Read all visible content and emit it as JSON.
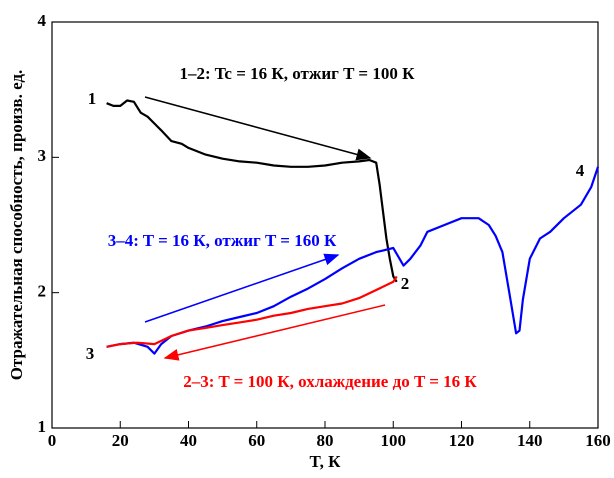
{
  "chart_data": {
    "type": "line",
    "xlabel": "T, К",
    "ylabel": "Отражательная способность, произв. ед.",
    "xlim": [
      0,
      160
    ],
    "xticks": [
      0,
      20,
      40,
      60,
      80,
      100,
      120,
      140,
      160
    ],
    "ylim": [
      1,
      4
    ],
    "yticks": [
      1,
      2,
      3,
      4
    ],
    "grid": false,
    "series": [
      {
        "name": "1–2: Tc = 16 К, отжиг T = 100 К",
        "color": "#000000",
        "x": [
          16,
          18,
          20,
          22,
          24,
          26,
          28,
          30,
          32,
          35,
          38,
          40,
          45,
          50,
          55,
          60,
          65,
          70,
          75,
          80,
          85,
          90,
          93,
          95,
          96,
          97,
          98,
          99,
          100,
          101
        ],
        "values": [
          3.4,
          3.38,
          3.38,
          3.42,
          3.41,
          3.33,
          3.3,
          3.25,
          3.2,
          3.12,
          3.1,
          3.07,
          3.02,
          2.99,
          2.97,
          2.96,
          2.94,
          2.93,
          2.93,
          2.94,
          2.96,
          2.97,
          2.98,
          2.96,
          2.8,
          2.6,
          2.4,
          2.25,
          2.12,
          2.08
        ]
      },
      {
        "name": "3–4: T = 16 К, отжиг T = 160 К",
        "color": "#0000ff",
        "x": [
          16,
          20,
          24,
          28,
          30,
          32,
          35,
          40,
          45,
          50,
          55,
          60,
          65,
          70,
          75,
          80,
          85,
          90,
          95,
          100,
          103,
          105,
          108,
          110,
          115,
          120,
          125,
          128,
          130,
          132,
          134,
          135,
          136,
          137,
          138,
          140,
          143,
          146,
          150,
          155,
          158,
          160
        ],
        "values": [
          1.6,
          1.62,
          1.63,
          1.6,
          1.55,
          1.62,
          1.68,
          1.72,
          1.75,
          1.79,
          1.82,
          1.85,
          1.9,
          1.97,
          2.03,
          2.1,
          2.18,
          2.25,
          2.3,
          2.33,
          2.2,
          2.25,
          2.35,
          2.45,
          2.5,
          2.55,
          2.55,
          2.5,
          2.42,
          2.3,
          2.0,
          1.85,
          1.7,
          1.72,
          1.95,
          2.25,
          2.4,
          2.45,
          2.55,
          2.65,
          2.78,
          2.93
        ]
      },
      {
        "name": "2–3: T = 100 К, охлаждение до T = 16 К",
        "color": "#ff0000",
        "x": [
          16,
          20,
          25,
          30,
          35,
          40,
          45,
          50,
          55,
          60,
          65,
          70,
          75,
          80,
          85,
          90,
          95,
          100,
          101
        ],
        "values": [
          1.6,
          1.62,
          1.63,
          1.62,
          1.68,
          1.72,
          1.74,
          1.76,
          1.78,
          1.8,
          1.83,
          1.85,
          1.88,
          1.9,
          1.92,
          1.96,
          2.02,
          2.08,
          2.12
        ]
      }
    ],
    "point_labels": [
      "1",
      "2",
      "3",
      "4"
    ]
  }
}
